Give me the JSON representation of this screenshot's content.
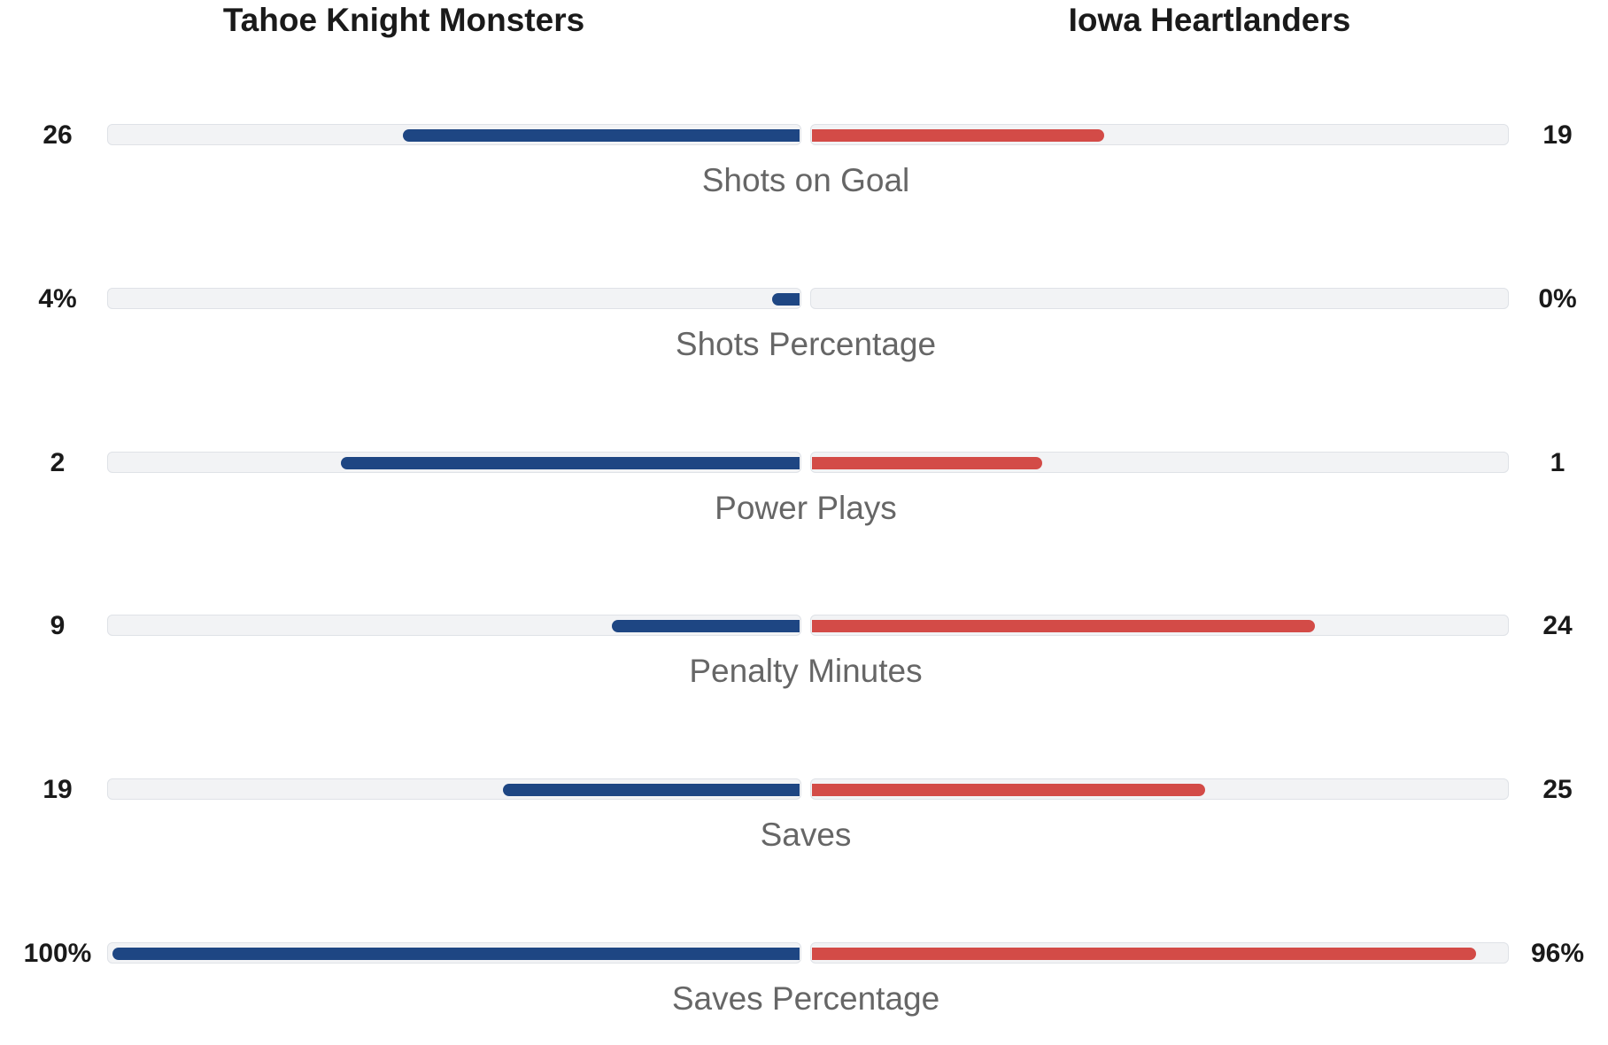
{
  "teams": {
    "left": {
      "name": "Tahoe Knight Monsters",
      "color": "#1e4683"
    },
    "right": {
      "name": "Iowa Heartlanders",
      "color": "#d34b47"
    }
  },
  "stats": [
    {
      "label": "Shots on Goal",
      "left_value": "26",
      "right_value": "19",
      "left_fill": 0.577,
      "right_fill": 0.422
    },
    {
      "label": "Shots Percentage",
      "left_value": "4%",
      "right_value": "0%",
      "left_fill": 0.04,
      "right_fill": 0.0
    },
    {
      "label": "Power Plays",
      "left_value": "2",
      "right_value": "1",
      "left_fill": 0.667,
      "right_fill": 0.333
    },
    {
      "label": "Penalty Minutes",
      "left_value": "9",
      "right_value": "24",
      "left_fill": 0.273,
      "right_fill": 0.727
    },
    {
      "label": "Saves",
      "left_value": "19",
      "right_value": "25",
      "left_fill": 0.432,
      "right_fill": 0.568
    },
    {
      "label": "Saves Percentage",
      "left_value": "100%",
      "right_value": "96%",
      "left_fill": 1.0,
      "right_fill": 0.96
    }
  ]
}
